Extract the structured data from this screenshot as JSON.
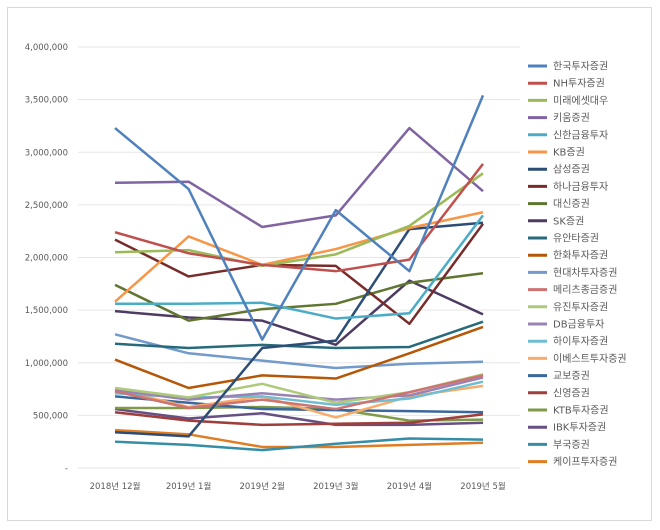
{
  "chart_data": {
    "type": "line",
    "title": "",
    "xlabel": "",
    "ylabel": "",
    "ylim": [
      0,
      4000000
    ],
    "yticks": [
      {
        "value": 0,
        "label": "-"
      },
      {
        "value": 500000,
        "label": "500,000"
      },
      {
        "value": 1000000,
        "label": "1,000,000"
      },
      {
        "value": 1500000,
        "label": "1,500,000"
      },
      {
        "value": 2000000,
        "label": "2,000,000"
      },
      {
        "value": 2500000,
        "label": "2,500,000"
      },
      {
        "value": 3000000,
        "label": "3,000,000"
      },
      {
        "value": 3500000,
        "label": "3,500,000"
      },
      {
        "value": 4000000,
        "label": "4,000,000"
      }
    ],
    "grid": true,
    "legend": "right",
    "categories": [
      "2018년 12월",
      "2019년 1월",
      "2019년 2월",
      "2019년 3월",
      "2019년 4월",
      "2019년 5월"
    ],
    "series": [
      {
        "name": "한국투자증권",
        "color": "#4F81BD",
        "values": [
          3230000,
          2650000,
          1220000,
          2450000,
          1870000,
          3540000
        ]
      },
      {
        "name": "NH투자증권",
        "color": "#C0504D",
        "values": [
          2240000,
          2040000,
          1930000,
          1870000,
          1980000,
          2890000
        ]
      },
      {
        "name": "미래에셋대우",
        "color": "#9BBB59",
        "values": [
          2050000,
          2070000,
          1920000,
          2030000,
          2300000,
          2800000
        ]
      },
      {
        "name": "키움증권",
        "color": "#8064A2",
        "values": [
          2710000,
          2720000,
          2290000,
          2400000,
          3230000,
          2630000
        ]
      },
      {
        "name": "신한금융투자",
        "color": "#4BACC6",
        "values": [
          1560000,
          1560000,
          1570000,
          1420000,
          1470000,
          2400000
        ]
      },
      {
        "name": "KB증권",
        "color": "#F79646",
        "values": [
          1580000,
          2200000,
          1930000,
          2080000,
          2280000,
          2430000
        ]
      },
      {
        "name": "삼성증권",
        "color": "#2C4D75",
        "values": [
          340000,
          300000,
          1140000,
          1210000,
          2270000,
          2330000
        ]
      },
      {
        "name": "하나금융투자",
        "color": "#772C2A",
        "values": [
          2170000,
          1820000,
          1930000,
          1920000,
          1370000,
          2320000
        ]
      },
      {
        "name": "대신증권",
        "color": "#5F7530",
        "values": [
          1740000,
          1400000,
          1510000,
          1560000,
          1760000,
          1850000
        ]
      },
      {
        "name": "SK증권",
        "color": "#4D3B62",
        "values": [
          1490000,
          1430000,
          1400000,
          1170000,
          1780000,
          1460000
        ]
      },
      {
        "name": "유안타증권",
        "color": "#276A7C",
        "values": [
          1180000,
          1140000,
          1170000,
          1140000,
          1150000,
          1390000
        ]
      },
      {
        "name": "한화투자증권",
        "color": "#B65708",
        "values": [
          1030000,
          760000,
          880000,
          850000,
          1090000,
          1340000
        ]
      },
      {
        "name": "현대차투자증권",
        "color": "#729ACA",
        "values": [
          1270000,
          1090000,
          1020000,
          950000,
          990000,
          1010000
        ]
      },
      {
        "name": "메리츠종금증권",
        "color": "#CD7371",
        "values": [
          730000,
          570000,
          650000,
          560000,
          720000,
          880000
        ]
      },
      {
        "name": "유진투자증권",
        "color": "#AFC97A",
        "values": [
          760000,
          670000,
          800000,
          620000,
          720000,
          890000
        ]
      },
      {
        "name": "DB금융투자",
        "color": "#9983B5",
        "values": [
          740000,
          650000,
          710000,
          650000,
          690000,
          860000
        ]
      },
      {
        "name": "하이투자증권",
        "color": "#6FBDD1",
        "values": [
          710000,
          670000,
          680000,
          600000,
          660000,
          820000
        ]
      },
      {
        "name": "이베스트투자증권",
        "color": "#F9AB6B",
        "values": [
          750000,
          580000,
          680000,
          480000,
          680000,
          780000
        ]
      },
      {
        "name": "교보증권",
        "color": "#3A679C",
        "values": [
          680000,
          620000,
          560000,
          550000,
          540000,
          530000
        ]
      },
      {
        "name": "신영증권",
        "color": "#9F3E3A",
        "values": [
          530000,
          450000,
          410000,
          420000,
          430000,
          510000
        ]
      },
      {
        "name": "KTB투자증권",
        "color": "#7F9A48",
        "values": [
          570000,
          570000,
          580000,
          560000,
          450000,
          460000
        ]
      },
      {
        "name": "IBK투자증권",
        "color": "#664F83",
        "values": [
          560000,
          470000,
          520000,
          410000,
          410000,
          430000
        ]
      },
      {
        "name": "부국증권",
        "color": "#358EA6",
        "values": [
          250000,
          220000,
          170000,
          230000,
          280000,
          270000
        ]
      },
      {
        "name": "케이프투자증권",
        "color": "#E07D22",
        "values": [
          360000,
          320000,
          200000,
          200000,
          220000,
          240000
        ]
      }
    ]
  }
}
